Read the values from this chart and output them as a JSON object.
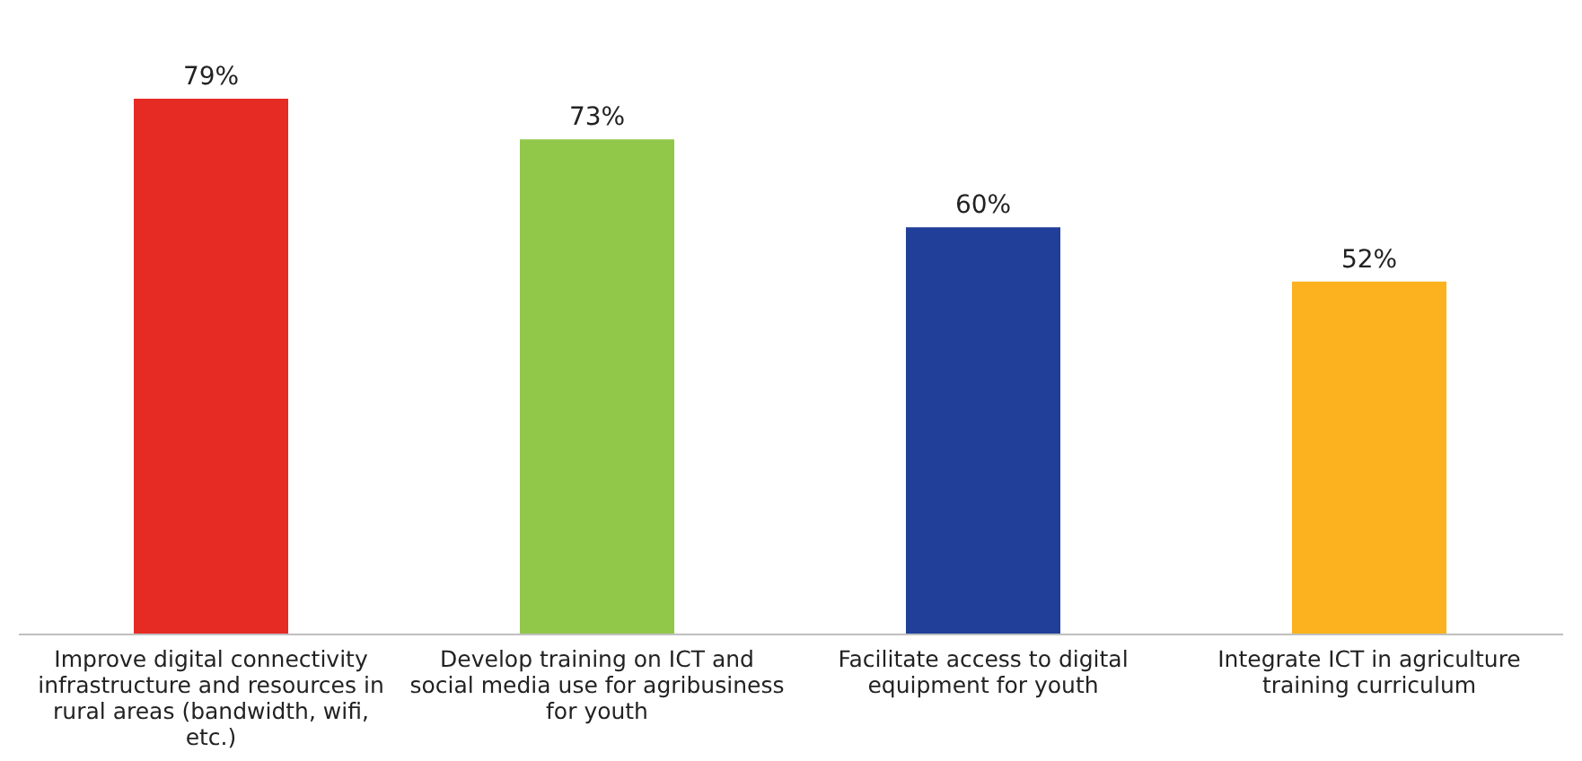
{
  "chart_data": {
    "type": "bar",
    "categories": [
      "Improve digital connectivity infrastructure and resources in rural areas (bandwidth, wifi, etc.)",
      "Develop training on ICT and social media use for agribusiness for youth",
      "Facilitate access to digital equipment for youth",
      "Integrate ICT in agriculture training curriculum"
    ],
    "values": [
      79,
      73,
      60,
      52
    ],
    "colors": [
      "#e52b24",
      "#92c84a",
      "#213f99",
      "#fbb21e"
    ],
    "value_labels": [
      "79%",
      "73%",
      "60%",
      "52%"
    ]
  }
}
